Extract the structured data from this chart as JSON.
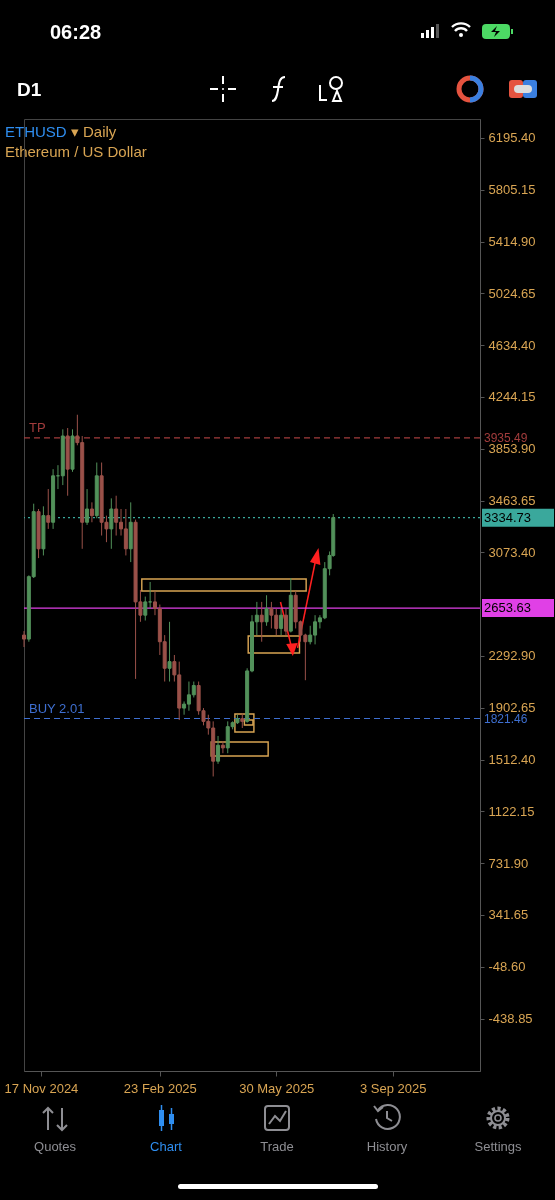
{
  "chart_data": {
    "type": "candlestick",
    "title": "ETHUSD ▾ Daily",
    "subtitle": "Ethereum / US Dollar",
    "x": [
      "2024-11-03",
      "2024-11-07",
      "2024-11-11",
      "2024-11-15",
      "2024-11-19",
      "2024-11-23",
      "2024-11-27",
      "2024-12-01",
      "2024-12-05",
      "2024-12-09",
      "2024-12-13",
      "2024-12-17",
      "2024-12-21",
      "2024-12-25",
      "2024-12-29",
      "2025-01-02",
      "2025-01-06",
      "2025-01-10",
      "2025-01-14",
      "2025-01-18",
      "2025-01-22",
      "2025-01-26",
      "2025-01-30",
      "2025-02-03",
      "2025-02-07",
      "2025-02-11",
      "2025-02-15",
      "2025-02-19",
      "2025-02-23",
      "2025-02-27",
      "2025-03-03",
      "2025-03-07",
      "2025-03-11",
      "2025-03-15",
      "2025-03-19",
      "2025-03-23",
      "2025-03-27",
      "2025-03-31",
      "2025-04-04",
      "2025-04-08",
      "2025-04-12",
      "2025-04-16",
      "2025-04-20",
      "2025-04-24",
      "2025-04-28",
      "2025-05-02",
      "2025-05-06",
      "2025-05-10",
      "2025-05-14",
      "2025-05-18",
      "2025-05-22",
      "2025-05-26",
      "2025-05-30",
      "2025-06-03",
      "2025-06-07",
      "2025-06-11",
      "2025-06-15",
      "2025-06-19",
      "2025-06-23",
      "2025-06-27",
      "2025-07-01",
      "2025-07-05",
      "2025-07-09",
      "2025-07-13",
      "2025-07-16"
    ],
    "ohlc": [
      [
        2450,
        2480,
        2360,
        2420
      ],
      [
        2420,
        2900,
        2400,
        2890
      ],
      [
        2890,
        3440,
        2880,
        3380
      ],
      [
        3380,
        3400,
        3030,
        3100
      ],
      [
        3100,
        3420,
        3050,
        3350
      ],
      [
        3350,
        3550,
        3250,
        3300
      ],
      [
        3300,
        3700,
        3250,
        3650
      ],
      [
        3650,
        3730,
        3550,
        3650
      ],
      [
        3650,
        4000,
        3580,
        3950
      ],
      [
        3950,
        4010,
        3500,
        3700
      ],
      [
        3700,
        4000,
        3680,
        3950
      ],
      [
        3950,
        4110,
        3880,
        3900
      ],
      [
        3900,
        3950,
        3100,
        3300
      ],
      [
        3300,
        3550,
        3280,
        3400
      ],
      [
        3400,
        3450,
        3300,
        3350
      ],
      [
        3350,
        3750,
        3330,
        3650
      ],
      [
        3650,
        3750,
        3200,
        3300
      ],
      [
        3300,
        3350,
        3150,
        3250
      ],
      [
        3250,
        3480,
        3100,
        3400
      ],
      [
        3400,
        3500,
        3200,
        3300
      ],
      [
        3300,
        3400,
        3200,
        3250
      ],
      [
        3250,
        3400,
        3050,
        3100
      ],
      [
        3100,
        3450,
        3000,
        3300
      ],
      [
        3300,
        3320,
        2120,
        2700
      ],
      [
        2700,
        2790,
        2550,
        2600
      ],
      [
        2600,
        2740,
        2560,
        2700
      ],
      [
        2700,
        2850,
        2650,
        2700
      ],
      [
        2700,
        2780,
        2600,
        2650
      ],
      [
        2650,
        2680,
        2300,
        2400
      ],
      [
        2400,
        2450,
        2100,
        2200
      ],
      [
        2200,
        2550,
        2100,
        2250
      ],
      [
        2250,
        2300,
        2100,
        2150
      ],
      [
        2150,
        2250,
        1810,
        1900
      ],
      [
        1900,
        1950,
        1850,
        1930
      ],
      [
        1930,
        2100,
        1880,
        2000
      ],
      [
        2000,
        2100,
        1980,
        2070
      ],
      [
        2070,
        2100,
        1850,
        1880
      ],
      [
        1880,
        1900,
        1770,
        1800
      ],
      [
        1800,
        1850,
        1700,
        1750
      ],
      [
        1750,
        1800,
        1385,
        1500
      ],
      [
        1500,
        1690,
        1480,
        1620
      ],
      [
        1620,
        1650,
        1560,
        1600
      ],
      [
        1600,
        1800,
        1560,
        1760
      ],
      [
        1760,
        1800,
        1740,
        1790
      ],
      [
        1790,
        1850,
        1780,
        1820
      ],
      [
        1820,
        1860,
        1750,
        1800
      ],
      [
        1800,
        2200,
        1790,
        2180
      ],
      [
        2180,
        2600,
        2170,
        2550
      ],
      [
        2550,
        2700,
        2450,
        2600
      ],
      [
        2600,
        2700,
        2400,
        2550
      ],
      [
        2550,
        2750,
        2520,
        2650
      ],
      [
        2650,
        2700,
        2500,
        2600
      ],
      [
        2600,
        2650,
        2450,
        2500
      ],
      [
        2500,
        2650,
        2450,
        2600
      ],
      [
        2600,
        2650,
        2450,
        2480
      ],
      [
        2480,
        2880,
        2470,
        2750
      ],
      [
        2750,
        2780,
        2500,
        2550
      ],
      [
        2550,
        2560,
        2400,
        2450
      ],
      [
        2450,
        2460,
        2110,
        2400
      ],
      [
        2400,
        2520,
        2380,
        2450
      ],
      [
        2450,
        2600,
        2380,
        2550
      ],
      [
        2550,
        2600,
        2500,
        2580
      ],
      [
        2580,
        3000,
        2570,
        2950
      ],
      [
        2950,
        3080,
        2900,
        3050
      ],
      [
        3050,
        3362,
        3040,
        3334.73
      ]
    ],
    "xlim": [
      "2024-11-03",
      "2025-11-14"
    ],
    "xticks": [
      {
        "value": "2024-11-17",
        "label": "17 Nov 2024"
      },
      {
        "value": "2025-02-23",
        "label": "23 Feb 2025"
      },
      {
        "value": "2025-05-30",
        "label": "30 May 2025"
      },
      {
        "value": "2025-09-03",
        "label": "3 Sep 2025"
      }
    ],
    "ylim": [
      -834,
      6338
    ],
    "yticks": [
      {
        "value": 6195.4,
        "label": "6195.40"
      },
      {
        "value": 5805.15,
        "label": "5805.15"
      },
      {
        "value": 5414.9,
        "label": "5414.90"
      },
      {
        "value": 5024.65,
        "label": "5024.65"
      },
      {
        "value": 4634.4,
        "label": "4634.40"
      },
      {
        "value": 4244.15,
        "label": "4244.15"
      },
      {
        "value": 3853.9,
        "label": "3853.90"
      },
      {
        "value": 3463.65,
        "label": "3463.65"
      },
      {
        "value": 3073.4,
        "label": "3073.40"
      },
      {
        "value": 2292.9,
        "label": "2292.90"
      },
      {
        "value": 1902.65,
        "label": "1902.65"
      },
      {
        "value": 1512.4,
        "label": "1512.40"
      },
      {
        "value": 1122.15,
        "label": "1122.15"
      },
      {
        "value": 731.9,
        "label": "731.90"
      },
      {
        "value": 341.65,
        "label": "341.65"
      },
      {
        "value": -48.6,
        "label": "-48.60"
      },
      {
        "value": -438.85,
        "label": "-438.85"
      }
    ],
    "ref_lines": [
      {
        "axis": "y",
        "value": 3935.49,
        "label": "TP",
        "color": "#a23c3c",
        "line_style": "dashed"
      },
      {
        "axis": "y",
        "value": 3334.73,
        "color": "#3aa89c",
        "line_style": "dotted"
      },
      {
        "axis": "y",
        "value": 2653.63,
        "color": "#e040e6",
        "line_style": "solid"
      },
      {
        "axis": "y",
        "value": 1821.46,
        "label": "BUY 2.01",
        "color": "#3e6fd0",
        "line_style": "dashed"
      }
    ],
    "annotations": [
      "06:28",
      "D1",
      "Quotes",
      "Chart",
      "Trade",
      "History",
      "Settings",
      "3935.49",
      "3334.73",
      "2653.63",
      "1821.46"
    ]
  }
}
